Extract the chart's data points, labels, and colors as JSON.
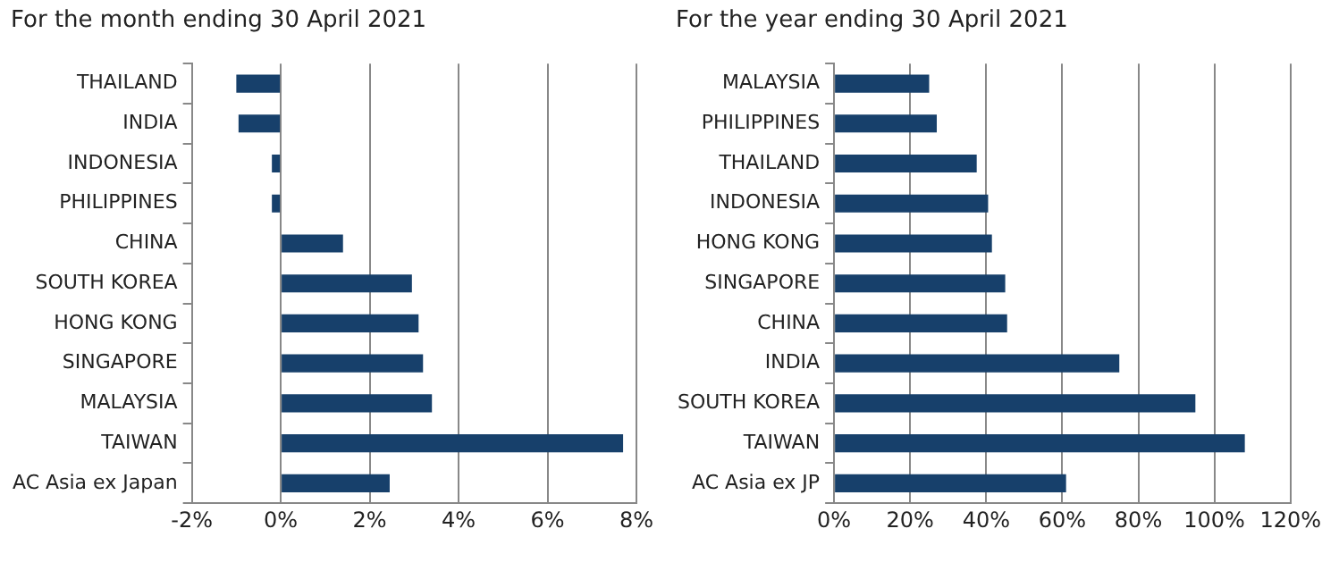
{
  "chart_data": [
    {
      "type": "bar",
      "orientation": "horizontal",
      "title": "For the month ending 30 April 2021",
      "categories": [
        "THAILAND",
        "INDIA",
        "INDONESIA",
        "PHILIPPINES",
        "CHINA",
        "SOUTH KOREA",
        "HONG KONG",
        "SINGAPORE",
        "MALAYSIA",
        "TAIWAN",
        "AC Asia ex Japan"
      ],
      "values": [
        -1.0,
        -0.95,
        -0.2,
        -0.2,
        1.4,
        2.95,
        3.1,
        3.2,
        3.4,
        7.7,
        2.45
      ],
      "color": "#17406b",
      "xlim": [
        -2,
        8
      ],
      "xticks": [
        {
          "value": -2,
          "label": "-2%"
        },
        {
          "value": 0,
          "label": "0%"
        },
        {
          "value": 2,
          "label": "2%"
        },
        {
          "value": 4,
          "label": "4%"
        },
        {
          "value": 6,
          "label": "6%"
        },
        {
          "value": 8,
          "label": "8%"
        }
      ],
      "grid": "x",
      "legend": false
    },
    {
      "type": "bar",
      "orientation": "horizontal",
      "title": "For the year ending 30 April 2021",
      "categories": [
        "MALAYSIA",
        "PHILIPPINES",
        "THAILAND",
        "INDONESIA",
        "HONG KONG",
        "SINGAPORE",
        "CHINA",
        "INDIA",
        "SOUTH KOREA",
        "TAIWAN",
        "AC Asia ex JP"
      ],
      "values": [
        25,
        27,
        37.5,
        40.5,
        41.5,
        45,
        45.5,
        75,
        95,
        108,
        61
      ],
      "color": "#17406b",
      "xlim": [
        0,
        120
      ],
      "xticks": [
        {
          "value": 0,
          "label": "0%"
        },
        {
          "value": 20,
          "label": "20%"
        },
        {
          "value": 40,
          "label": "40%"
        },
        {
          "value": 60,
          "label": "60%"
        },
        {
          "value": 80,
          "label": "80%"
        },
        {
          "value": 100,
          "label": "100%"
        },
        {
          "value": 120,
          "label": "120%"
        }
      ],
      "grid": "x",
      "legend": false
    }
  ]
}
